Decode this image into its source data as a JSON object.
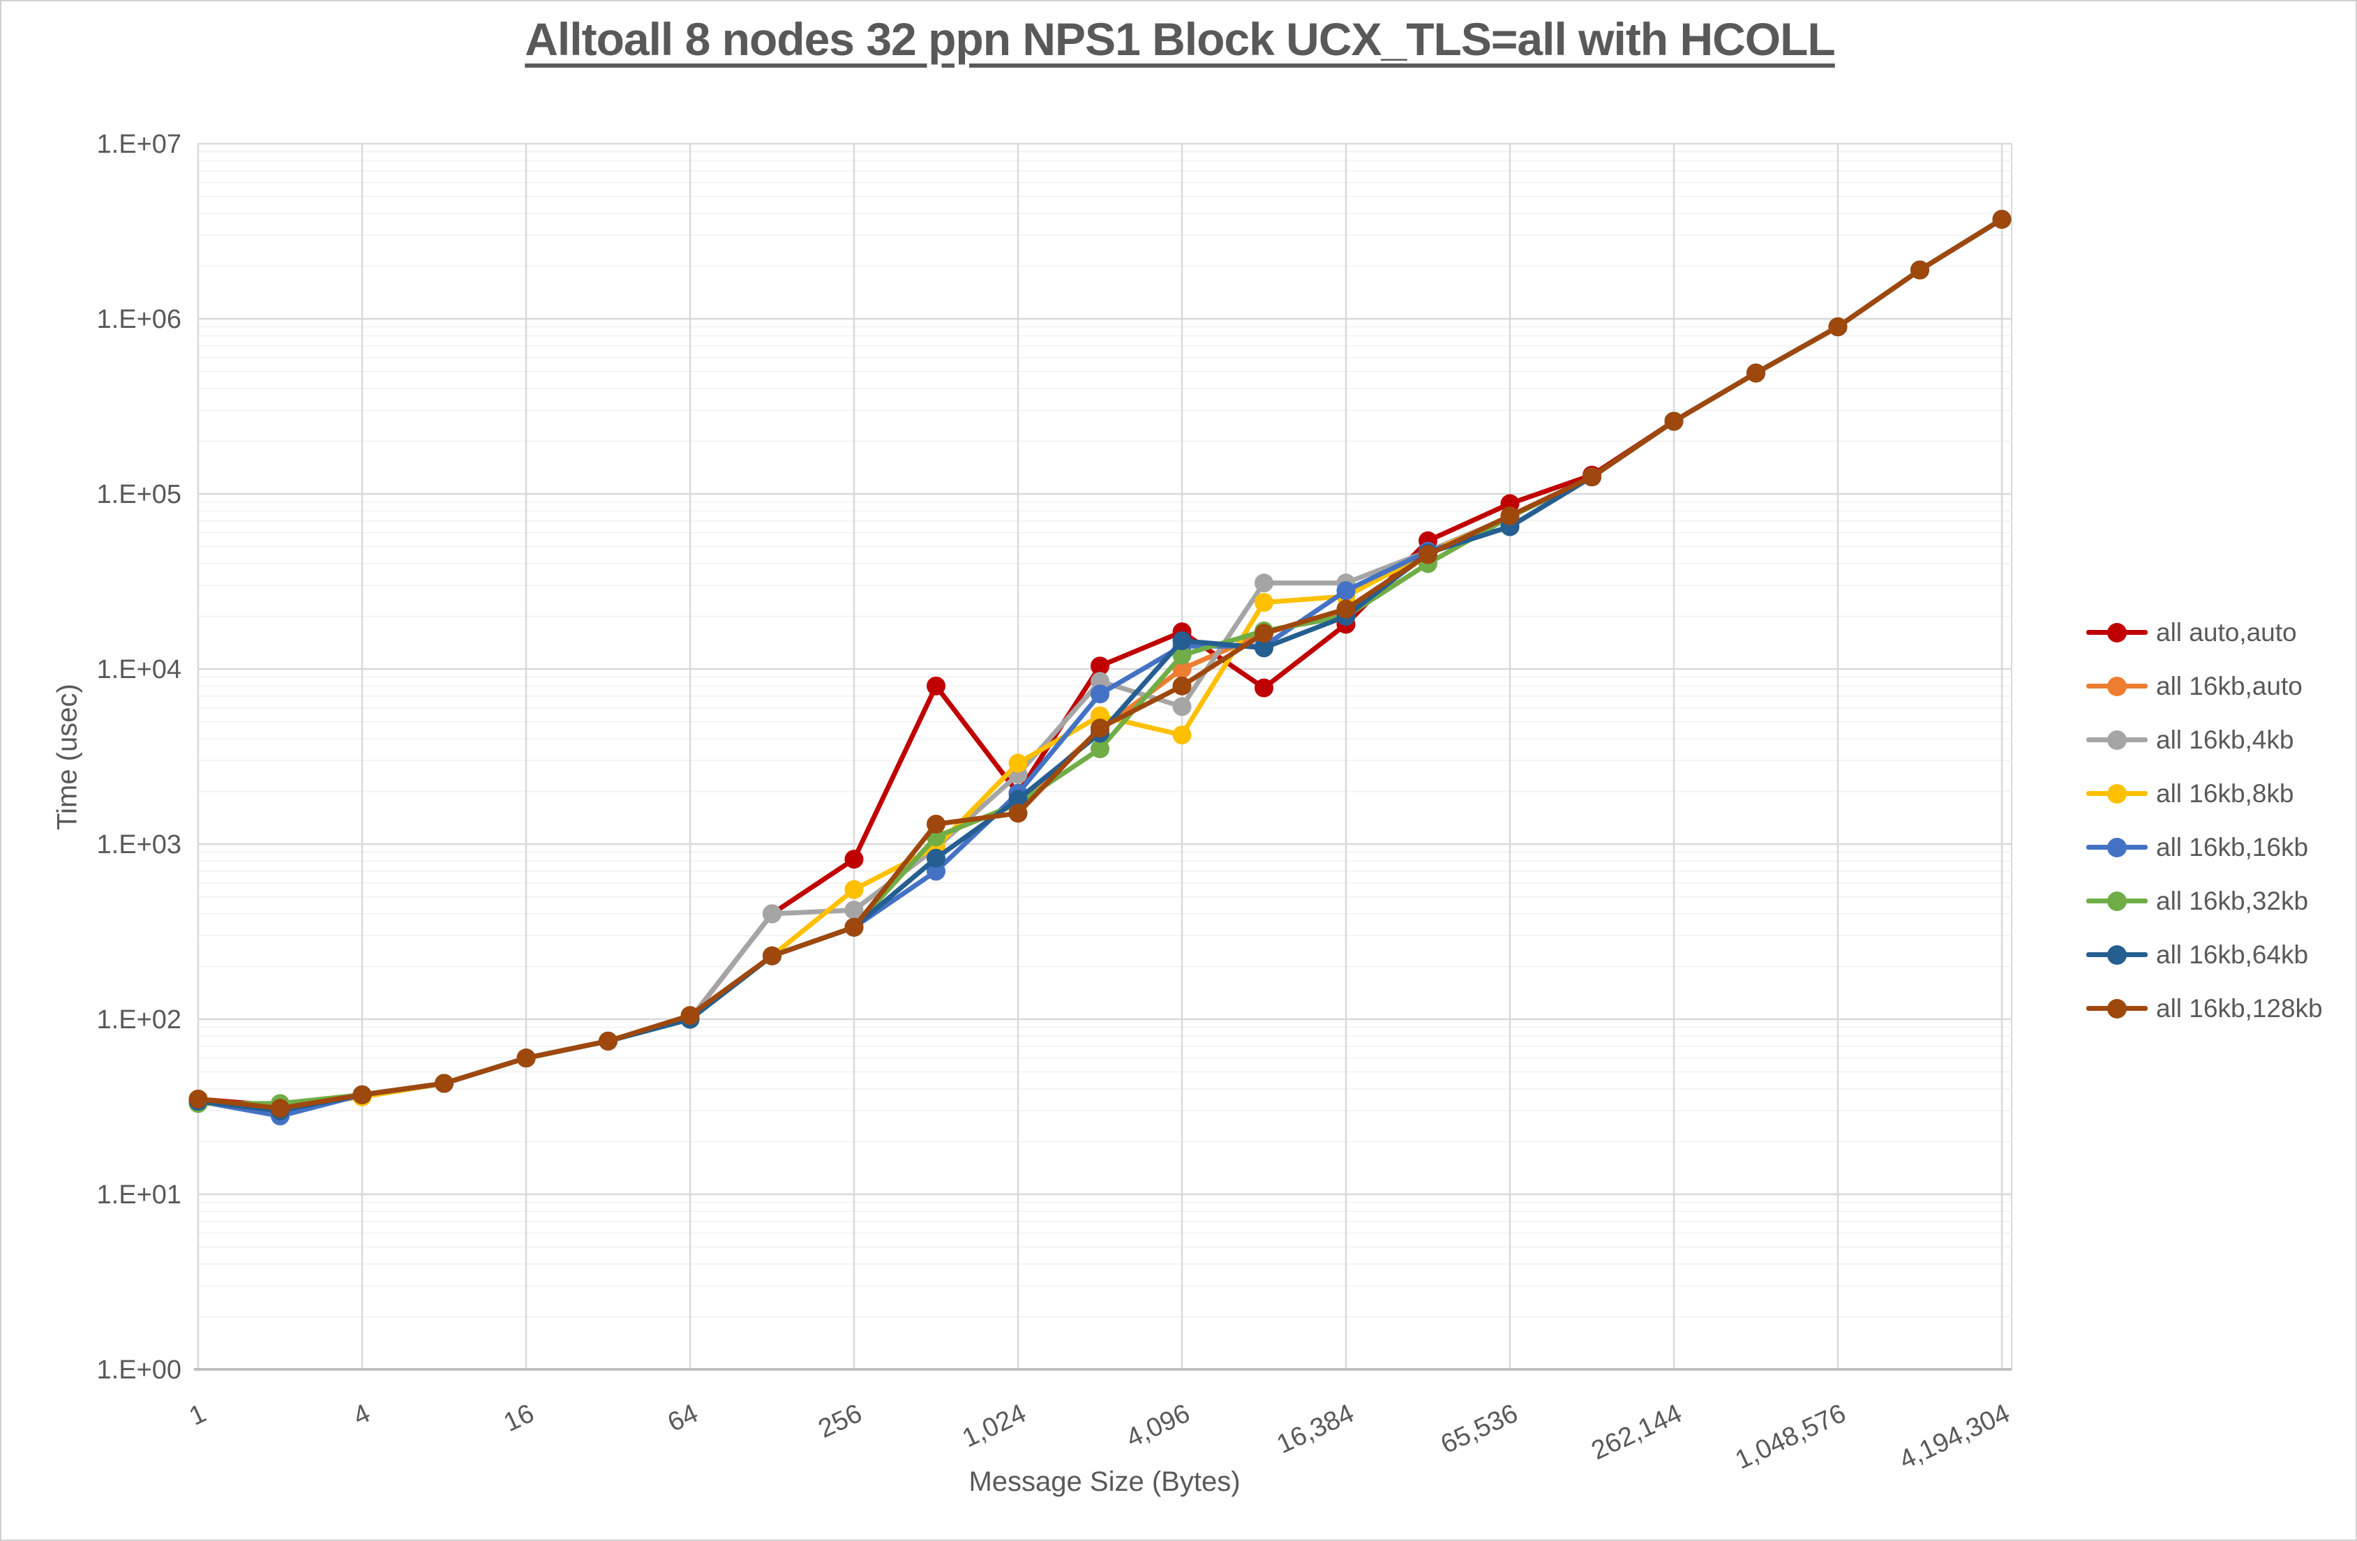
{
  "chart_data": {
    "type": "line",
    "title": "Alltoall 8 nodes 32 ppn NPS1 Block UCX_TLS=all with HCOLL",
    "xlabel": "Message Size (Bytes)",
    "ylabel": "Time (usec)",
    "x_scale": "log2",
    "y_scale": "log10",
    "xlim": [
      1,
      4194304
    ],
    "ylim": [
      1,
      10000000
    ],
    "grid": "on",
    "legend_position": "right",
    "x": [
      1,
      2,
      4,
      8,
      16,
      32,
      64,
      128,
      256,
      512,
      1024,
      2048,
      4096,
      8192,
      16384,
      32768,
      65536,
      131072,
      262144,
      524288,
      1048576,
      2097152,
      4194304
    ],
    "x_tick_values": [
      1,
      4,
      16,
      64,
      256,
      1024,
      4096,
      16384,
      65536,
      262144,
      1048576,
      4194304
    ],
    "x_tick_labels": [
      "1",
      "4",
      "16",
      "64",
      "256",
      "1,024",
      "4,096",
      "16,384",
      "65,536",
      "262,144",
      "1,048,576",
      "4,194,304"
    ],
    "y_tick_values": [
      1,
      10,
      100,
      1000,
      10000,
      100000,
      1000000,
      10000000
    ],
    "y_tick_labels": [
      "1.E+00",
      "1.E+01",
      "1.E+02",
      "1.E+03",
      "1.E+04",
      "1.E+05",
      "1.E+06",
      "1.E+07"
    ],
    "series": [
      {
        "name": "all auto,auto",
        "color": "#C00000",
        "values": [
          35,
          32,
          37,
          43,
          60,
          75,
          100,
          400,
          820,
          8000,
          1950,
          10400,
          16300,
          7800,
          18000,
          54000,
          88000,
          128000,
          260000,
          490000,
          900000,
          1900000,
          3700000
        ]
      },
      {
        "name": "all 16kb,auto",
        "color": "#ED7D31",
        "values": [
          35,
          31,
          37,
          43,
          60,
          75,
          100,
          230,
          335,
          1100,
          1700,
          4500,
          10000,
          16000,
          21000,
          45000,
          74000,
          125000,
          260000,
          490000,
          900000,
          1900000,
          3700000
        ]
      },
      {
        "name": "all 16kb,4kb",
        "color": "#A5A5A5",
        "values": [
          35,
          31,
          37,
          43,
          60,
          75,
          100,
          400,
          420,
          950,
          2500,
          8500,
          6100,
          31000,
          31000,
          47000,
          74000,
          125000,
          260000,
          490000,
          900000,
          1900000,
          3700000
        ]
      },
      {
        "name": "all 16kb,8kb",
        "color": "#FFC000",
        "values": [
          35,
          31,
          36,
          43,
          60,
          75,
          100,
          230,
          550,
          960,
          2900,
          5400,
          4200,
          24000,
          26000,
          46000,
          74000,
          125000,
          260000,
          490000,
          900000,
          1900000,
          3700000
        ]
      },
      {
        "name": "all 16kb,16kb",
        "color": "#4472C4",
        "values": [
          34,
          28,
          37,
          43,
          60,
          75,
          100,
          230,
          335,
          700,
          1950,
          7200,
          13500,
          13500,
          28000,
          47000,
          65000,
          125000,
          260000,
          490000,
          900000,
          1900000,
          3700000
        ]
      },
      {
        "name": "all 16kb,32kb",
        "color": "#70AD47",
        "values": [
          33,
          33,
          37,
          43,
          60,
          75,
          100,
          230,
          335,
          1100,
          1700,
          3500,
          12000,
          16500,
          20000,
          40000,
          74000,
          125000,
          260000,
          490000,
          900000,
          1900000,
          3700000
        ]
      },
      {
        "name": "all 16kb,64kb",
        "color": "#255E91",
        "values": [
          34,
          30,
          37,
          43,
          60,
          75,
          100,
          230,
          335,
          830,
          1800,
          4300,
          14500,
          13200,
          20000,
          46000,
          65000,
          125000,
          260000,
          490000,
          900000,
          1900000,
          3700000
        ]
      },
      {
        "name": "all 16kb,128kb",
        "color": "#9E480E",
        "values": [
          35,
          31,
          37,
          43,
          60,
          75,
          105,
          230,
          335,
          1300,
          1500,
          4600,
          8000,
          16000,
          22000,
          45000,
          75000,
          125000,
          260000,
          490000,
          900000,
          1900000,
          3700000
        ]
      }
    ],
    "colors": {
      "text": "#595959",
      "grid_major": "#D9D9D9",
      "grid_minor": "#F0F0F0",
      "axis_line": "#BFBFBF",
      "plot_border": "#D9D9D9"
    }
  }
}
